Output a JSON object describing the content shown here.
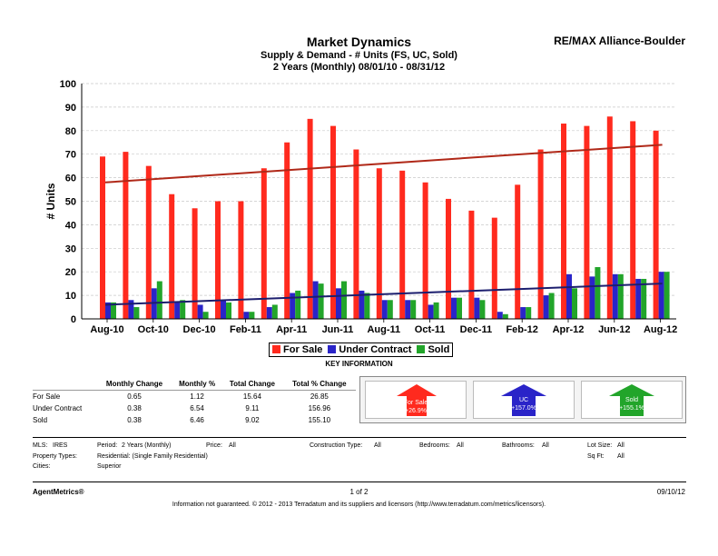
{
  "header": {
    "title": "Market Dynamics",
    "subtitle1": "Supply & Demand - # Units (FS, UC, Sold)",
    "subtitle2": "2 Years (Monthly) 08/01/10 - 08/31/12",
    "brand": "RE/MAX Alliance-Boulder"
  },
  "chart_data": {
    "type": "bar",
    "ylabel": "# Units",
    "ylim": [
      0,
      100
    ],
    "yticks": [
      0,
      10,
      20,
      30,
      40,
      50,
      60,
      70,
      80,
      90,
      100
    ],
    "xtick_labels": [
      "Aug-10",
      "Oct-10",
      "Dec-10",
      "Feb-11",
      "Apr-11",
      "Jun-11",
      "Aug-11",
      "Oct-11",
      "Dec-11",
      "Feb-12",
      "Apr-12",
      "Jun-12",
      "Aug-12"
    ],
    "categories": [
      "Aug-10",
      "Sep-10",
      "Oct-10",
      "Nov-10",
      "Dec-10",
      "Jan-11",
      "Feb-11",
      "Mar-11",
      "Apr-11",
      "May-11",
      "Jun-11",
      "Jul-11",
      "Aug-11",
      "Sep-11",
      "Oct-11",
      "Nov-11",
      "Dec-11",
      "Jan-12",
      "Feb-12",
      "Mar-12",
      "Apr-12",
      "May-12",
      "Jun-12",
      "Jul-12",
      "Aug-12"
    ],
    "series": [
      {
        "name": "For Sale",
        "color": "#ff2a1e",
        "values": [
          69,
          71,
          65,
          53,
          47,
          50,
          50,
          64,
          75,
          85,
          82,
          72,
          64,
          63,
          58,
          51,
          46,
          43,
          57,
          72,
          83,
          82,
          86,
          84,
          80
        ],
        "trend": [
          58,
          74
        ],
        "trend_color": "#b02818"
      },
      {
        "name": "Under Contract",
        "color": "#2a24c8",
        "values": [
          7,
          8,
          13,
          7,
          6,
          8,
          3,
          5,
          11,
          16,
          13,
          12,
          8,
          8,
          6,
          9,
          9,
          3,
          5,
          10,
          19,
          18,
          19,
          17,
          20
        ],
        "trend": [
          6,
          15
        ],
        "trend_color": "#1c1e6e"
      },
      {
        "name": "Sold",
        "color": "#22a52a",
        "values": [
          7,
          5,
          16,
          8,
          3,
          7,
          3,
          6,
          12,
          15,
          16,
          11,
          8,
          8,
          7,
          9,
          8,
          2,
          5,
          11,
          13,
          22,
          19,
          17,
          20
        ]
      }
    ],
    "grid": true,
    "legend_position": "bottom-center"
  },
  "key_information": {
    "title": "KEY INFORMATION",
    "columns": [
      "",
      "Monthly Change",
      "Monthly %",
      "Total Change",
      "Total % Change"
    ],
    "rows": [
      [
        "For Sale",
        "0.65",
        "1.12",
        "15.64",
        "26.85"
      ],
      [
        "Under Contract",
        "0.38",
        "6.54",
        "9.11",
        "156.96"
      ],
      [
        "Sold",
        "0.38",
        "6.46",
        "9.02",
        "155.10"
      ]
    ],
    "arrows": [
      {
        "label": "For Sale",
        "value": "+26.9%",
        "color": "#ff2a1e"
      },
      {
        "label": "UC",
        "value": "+157.0%",
        "color": "#2a24c8"
      },
      {
        "label": "Sold",
        "value": "+155.1%",
        "color": "#22a52a"
      }
    ]
  },
  "criteria": {
    "mls_label": "MLS:",
    "mls_value": "IRES",
    "period_label": "Period:",
    "period_value": "2 Years (Monthly)",
    "price_label": "Price:",
    "price_value": "All",
    "construction_label": "Construction Type:",
    "construction_value": "All",
    "bedrooms_label": "Bedrooms:",
    "bedrooms_value": "All",
    "bathrooms_label": "Bathrooms:",
    "bathrooms_value": "All",
    "lotsize_label": "Lot Size:",
    "lotsize_value": "All",
    "proptypes_label": "Property Types:",
    "proptypes_value": "Residential: (Single Family Residential)",
    "sqft_label": "Sq Ft:",
    "sqft_value": "All",
    "cities_label": "Cities:",
    "cities_value": "Superior"
  },
  "footer": {
    "left": "AgentMetrics®",
    "center": "1 of 2",
    "right": "09/10/12",
    "disclaimer": "Information not guaranteed.  © 2012 - 2013 Terradatum and its suppliers and licensors (http://www.terradatum.com/metrics/licensors)."
  }
}
